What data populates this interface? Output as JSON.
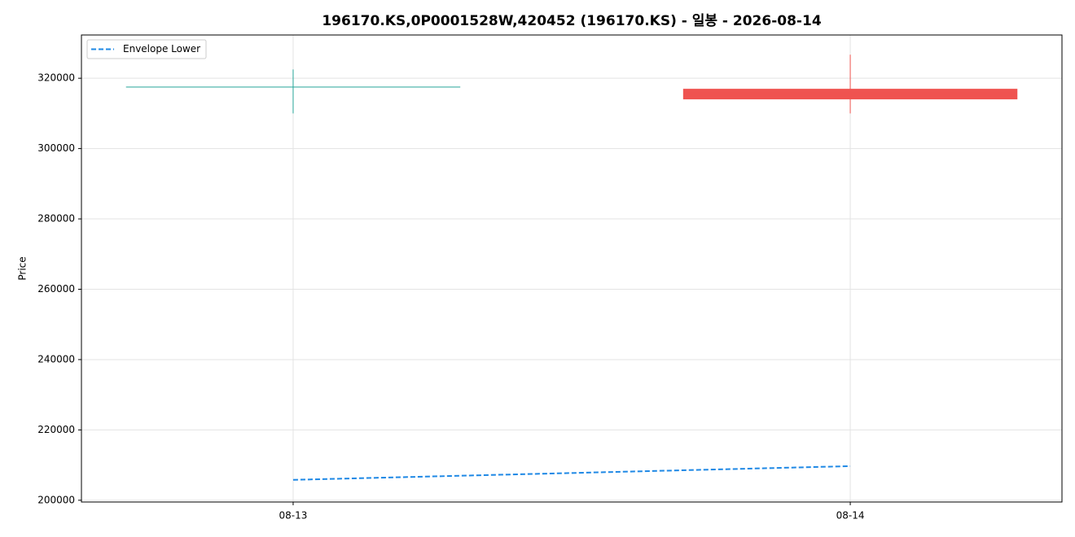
{
  "chart_data": {
    "type": "candlestick",
    "title": "196170.KS,0P0001528W,420452 (196170.KS) - 일봉 - 2026-08-14",
    "y_label": "Price",
    "categories": [
      "08-13",
      "08-14"
    ],
    "open": [
      317500,
      317000
    ],
    "high": [
      322500,
      326700
    ],
    "low": [
      310000,
      310000
    ],
    "close": [
      317500,
      314000
    ],
    "up_color": "#26a69a",
    "down_color": "#ef5350",
    "series": [
      {
        "name": "Envelope Lower",
        "color": "#1e88e5",
        "dashed": true,
        "values": [
          205800,
          209700
        ]
      }
    ],
    "ylim": [
      199500,
      332300
    ],
    "yticks": [
      200000,
      220000,
      240000,
      260000,
      280000,
      300000,
      320000
    ],
    "grid": true,
    "legend": "upper left"
  }
}
